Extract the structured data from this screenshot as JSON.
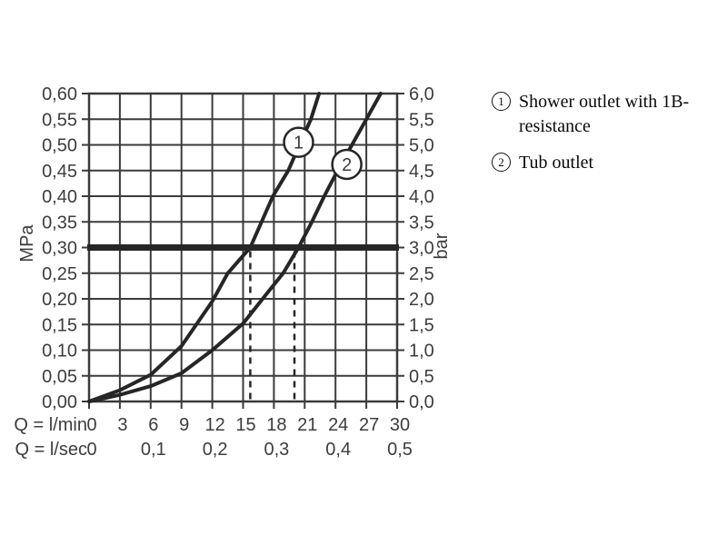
{
  "page": {
    "background": "#ffffff"
  },
  "legend": {
    "items": [
      {
        "num": "1",
        "lines": [
          "Shower outlet with 1B-",
          "resistance"
        ]
      },
      {
        "num": "2",
        "lines": [
          "Tub outlet"
        ]
      }
    ]
  },
  "chart_data": {
    "type": "line",
    "title": "",
    "grid": true,
    "x_axis": {
      "name_primary": "Q = l/min",
      "name_secondary": "Q = l/sec",
      "range_lmin": [
        0,
        30
      ],
      "ticks_lmin": [
        {
          "v": 0,
          "label": "0"
        },
        {
          "v": 3,
          "label": "3"
        },
        {
          "v": 6,
          "label": "6"
        },
        {
          "v": 9,
          "label": "9"
        },
        {
          "v": 12,
          "label": "12"
        },
        {
          "v": 15,
          "label": "15"
        },
        {
          "v": 18,
          "label": "18"
        },
        {
          "v": 21,
          "label": "21"
        },
        {
          "v": 24,
          "label": "24"
        },
        {
          "v": 27,
          "label": "27"
        },
        {
          "v": 30,
          "label": "30"
        }
      ],
      "ticks_lsec": [
        {
          "v": 0,
          "label": "0"
        },
        {
          "v": 6,
          "label": "0,1"
        },
        {
          "v": 12,
          "label": "0,2"
        },
        {
          "v": 18,
          "label": "0,3"
        },
        {
          "v": 24,
          "label": "0,4"
        },
        {
          "v": 30,
          "label": "0,5"
        }
      ]
    },
    "y_axis_left": {
      "name": "MPa",
      "range": [
        0,
        0.6
      ],
      "ticks": [
        {
          "v": 0.0,
          "label": "0,00"
        },
        {
          "v": 0.05,
          "label": "0,05"
        },
        {
          "v": 0.1,
          "label": "0,10"
        },
        {
          "v": 0.15,
          "label": "0,15"
        },
        {
          "v": 0.2,
          "label": "0,20"
        },
        {
          "v": 0.25,
          "label": "0,25"
        },
        {
          "v": 0.3,
          "label": "0,30"
        },
        {
          "v": 0.35,
          "label": "0,35"
        },
        {
          "v": 0.4,
          "label": "0,40"
        },
        {
          "v": 0.45,
          "label": "0,45"
        },
        {
          "v": 0.5,
          "label": "0,50"
        },
        {
          "v": 0.55,
          "label": "0,55"
        },
        {
          "v": 0.6,
          "label": "0,60"
        }
      ]
    },
    "y_axis_right": {
      "name": "bar",
      "range": [
        0,
        6
      ],
      "ticks": [
        {
          "v": 0.0,
          "label": "0,0"
        },
        {
          "v": 0.05,
          "label": "0,5"
        },
        {
          "v": 0.1,
          "label": "1,0"
        },
        {
          "v": 0.15,
          "label": "1,5"
        },
        {
          "v": 0.2,
          "label": "2,0"
        },
        {
          "v": 0.25,
          "label": "2,5"
        },
        {
          "v": 0.3,
          "label": "3,0"
        },
        {
          "v": 0.35,
          "label": "3,5"
        },
        {
          "v": 0.4,
          "label": "4,0"
        },
        {
          "v": 0.45,
          "label": "4,5"
        },
        {
          "v": 0.5,
          "label": "5,0"
        },
        {
          "v": 0.55,
          "label": "5,5"
        },
        {
          "v": 0.6,
          "label": "6,0"
        }
      ]
    },
    "reference_line_mpa": 0.3,
    "dashed_markers_lmin": [
      15.7,
      20.0
    ],
    "series": [
      {
        "name": "Shower outlet with 1B-resistance",
        "marker_num": "1",
        "marker_pos": [
          20.4,
          0.505
        ],
        "points": [
          [
            0,
            0
          ],
          [
            3,
            0.022
          ],
          [
            6,
            0.052
          ],
          [
            9,
            0.108
          ],
          [
            12,
            0.195
          ],
          [
            13.5,
            0.25
          ],
          [
            15.7,
            0.3
          ],
          [
            17.9,
            0.4
          ],
          [
            19.4,
            0.45
          ],
          [
            20.6,
            0.505
          ],
          [
            21.6,
            0.55
          ],
          [
            22.4,
            0.6
          ]
        ]
      },
      {
        "name": "Tub outlet",
        "marker_num": "2",
        "marker_pos": [
          25.1,
          0.462
        ],
        "points": [
          [
            0,
            0
          ],
          [
            3,
            0.013
          ],
          [
            6,
            0.03
          ],
          [
            9,
            0.055
          ],
          [
            12,
            0.1
          ],
          [
            15,
            0.152
          ],
          [
            16.9,
            0.2
          ],
          [
            18.9,
            0.25
          ],
          [
            20.4,
            0.3
          ],
          [
            21.7,
            0.35
          ],
          [
            22.9,
            0.4
          ],
          [
            24.2,
            0.45
          ],
          [
            25.6,
            0.5
          ],
          [
            27,
            0.55
          ],
          [
            28.4,
            0.6
          ]
        ]
      }
    ],
    "colors": {
      "grid": "#3b3b3b",
      "curve": "#262626",
      "reference": "#262626",
      "label": "#3d3d3d",
      "legend_text": "#0a0a0a"
    }
  }
}
